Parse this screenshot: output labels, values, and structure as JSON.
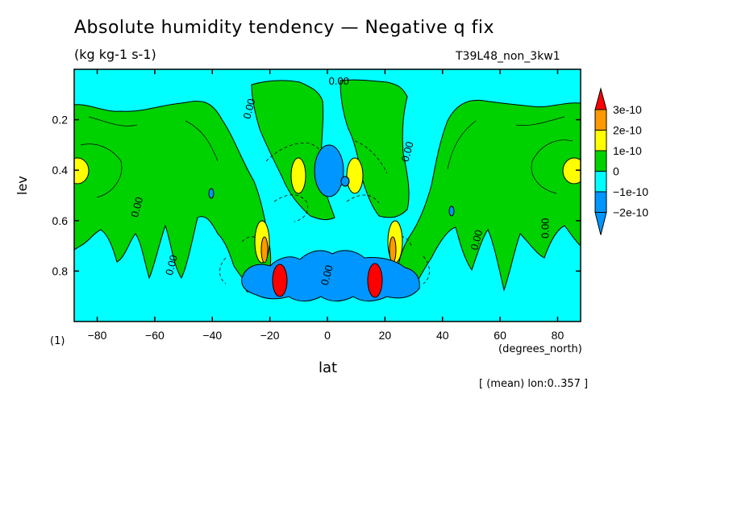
{
  "title": "Absolute humidity tendency — Negative q fix",
  "units": "(kg kg-1 s-1)",
  "run_label": "T39L48_non_3kw1",
  "footnote": "[ (mean) lon:0..357 ]",
  "colors": {
    "ocean": "#00ffff",
    "green": "#00d200",
    "yellow": "#ffff00",
    "orange": "#ff9900",
    "red": "#ff0000",
    "blue": "#0096ff",
    "line": "#000000"
  },
  "chart_data": {
    "type": "heatmap",
    "xlabel": "lat",
    "ylabel": "lev",
    "x_unit_label": "(degrees_north)",
    "y_unit_label": "(1)",
    "xlim": [
      -88,
      88
    ],
    "ylim": [
      0.0,
      1.0
    ],
    "y_inverted": true,
    "xticks": [
      -80,
      -60,
      -40,
      -20,
      0,
      20,
      40,
      60,
      80
    ],
    "xtick_labels": [
      "−80",
      "−60",
      "−40",
      "−20",
      "0",
      "20",
      "40",
      "60",
      "80"
    ],
    "yticks": [
      0.2,
      0.4,
      0.6,
      0.8
    ],
    "ytick_labels": [
      "0.2",
      "0.4",
      "0.6",
      "0.8"
    ],
    "contour_labels": [
      "0.00",
      "0.00",
      "0.00",
      "0.00",
      "0.00",
      "0.00",
      "0.00",
      "0.00"
    ],
    "colorbar": {
      "levels": [
        "3e-10",
        "2e-10",
        "1e-10",
        "0",
        "−1e-10",
        "−2e-10"
      ],
      "colors": [
        "#ff9900",
        "#ffff00",
        "#00d200",
        "#00ffff",
        "#0096ff"
      ],
      "extend_max_color": "#ff0000",
      "extend_min_color": "#0096ff"
    },
    "regions": [
      {
        "sign": "positive",
        "level": "0 to 1e-10",
        "lat": [
          -88,
          -30
        ],
        "lev": [
          0.12,
          0.95
        ]
      },
      {
        "sign": "positive",
        "level": "0 to 1e-10",
        "lat": [
          -22,
          12
        ],
        "lev": [
          0.02,
          0.55
        ]
      },
      {
        "sign": "positive",
        "level": "0 to 1e-10",
        "lat": [
          14,
          28
        ],
        "lev": [
          0.05,
          0.28
        ]
      },
      {
        "sign": "positive",
        "level": "0 to 1e-10",
        "lat": [
          38,
          88
        ],
        "lev": [
          0.12,
          0.85
        ]
      },
      {
        "sign": "positive",
        "level": "1e-10 to 2e-10",
        "lat": [
          -88,
          -84
        ],
        "lev": [
          0.35,
          0.45
        ]
      },
      {
        "sign": "positive",
        "level": "1e-10 to 2e-10",
        "lat": [
          84,
          88
        ],
        "lev": [
          0.35,
          0.45
        ]
      },
      {
        "sign": "positive",
        "level": "1e-10 to 2e-10",
        "lat": [
          -12,
          -7
        ],
        "lev": [
          0.33,
          0.48
        ]
      },
      {
        "sign": "positive",
        "level": "1e-10 to 2e-10",
        "lat": [
          7,
          12
        ],
        "lev": [
          0.33,
          0.48
        ]
      },
      {
        "sign": "negative",
        "level": "−2e-10 to −1e-10",
        "lat": [
          -3,
          5
        ],
        "lev": [
          0.3,
          0.5
        ]
      },
      {
        "sign": "negative",
        "level": "−2e-10 to −1e-10",
        "lat": [
          -32,
          32
        ],
        "lev": [
          0.75,
          0.92
        ]
      },
      {
        "sign": "positive",
        "level": "> 3e-10",
        "lat": [
          -19,
          -15
        ],
        "lev": [
          0.8,
          0.9
        ]
      },
      {
        "sign": "positive",
        "level": "> 3e-10",
        "lat": [
          15,
          19
        ],
        "lev": [
          0.8,
          0.9
        ]
      }
    ]
  }
}
